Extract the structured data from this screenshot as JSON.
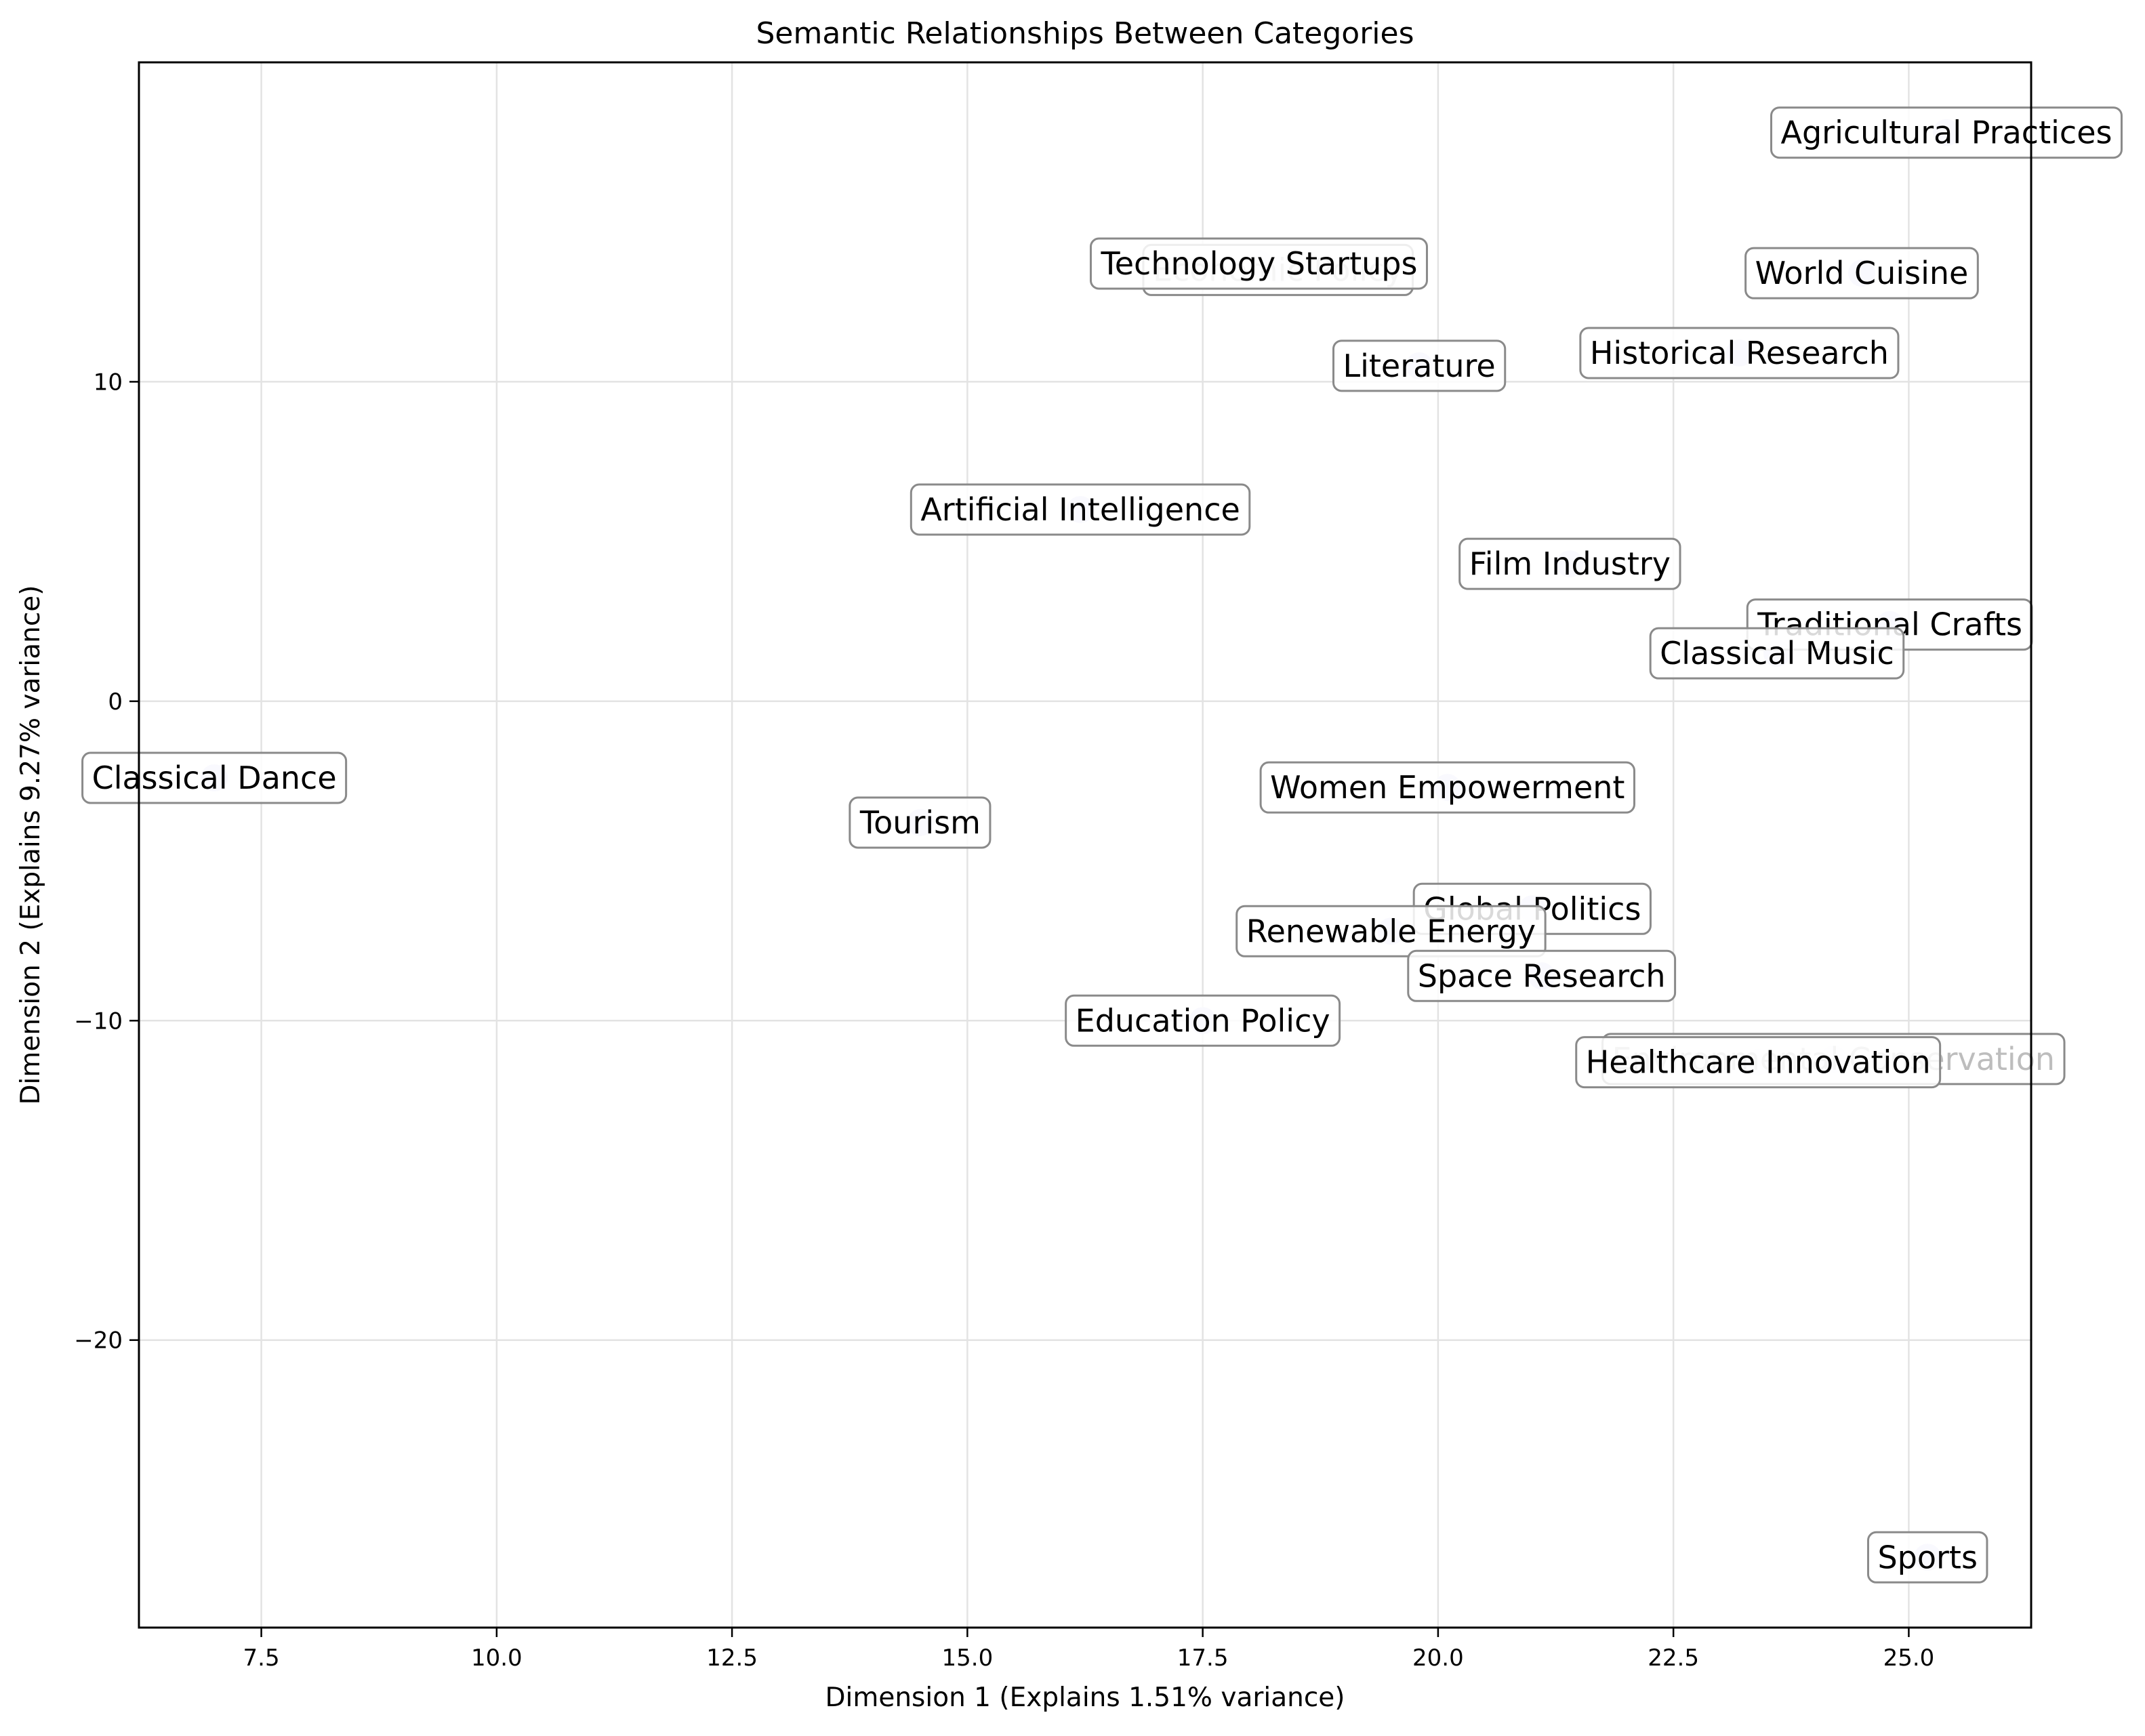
{
  "chart_data": {
    "type": "scatter",
    "title": "Semantic Relationships Between Categories",
    "xlabel": "Dimension 1 (Explains 1.51% variance)",
    "ylabel": "Dimension 2 (Explains 9.27% variance)",
    "xlim": [
      6.2,
      26.3
    ],
    "ylim": [
      -29.0,
      20.0
    ],
    "xticks": [
      7.5,
      10.0,
      12.5,
      15.0,
      17.5,
      20.0,
      22.5,
      25.0
    ],
    "xtick_labels": [
      "7.5",
      "10.0",
      "12.5",
      "15.0",
      "17.5",
      "20.0",
      "22.5",
      "25.0"
    ],
    "yticks": [
      10,
      0,
      -10,
      -20
    ],
    "ytick_labels": [
      "10",
      "0",
      "−10",
      "−20"
    ],
    "grid": true,
    "point_color": "#d8d8f6",
    "points": [
      {
        "label": "Agricultural Practices",
        "x": 25.4,
        "y": 17.8
      },
      {
        "label": "World Cuisine",
        "x": 24.5,
        "y": 13.4
      },
      {
        "label": "Historical Research",
        "x": 23.2,
        "y": 10.9
      },
      {
        "label": "Economic Policy",
        "x": 18.3,
        "y": 13.5
      },
      {
        "label": "Technology Startups",
        "x": 18.1,
        "y": 13.7
      },
      {
        "label": "Literature",
        "x": 19.8,
        "y": 10.5
      },
      {
        "label": "Artificial Intelligence",
        "x": 16.2,
        "y": 6.0
      },
      {
        "label": "Film Industry",
        "x": 21.4,
        "y": 4.3
      },
      {
        "label": "Traditional Crafts",
        "x": 24.8,
        "y": 2.4
      },
      {
        "label": "Classical Music",
        "x": 23.6,
        "y": 1.5
      },
      {
        "label": "Classical Dance",
        "x": 7.0,
        "y": -2.4
      },
      {
        "label": "Tourism",
        "x": 14.5,
        "y": -3.8
      },
      {
        "label": "Women Empowerment",
        "x": 20.1,
        "y": -2.7
      },
      {
        "label": "Global Politics",
        "x": 21.0,
        "y": -6.5
      },
      {
        "label": "Renewable Energy",
        "x": 19.5,
        "y": -7.2
      },
      {
        "label": "Space Research",
        "x": 21.1,
        "y": -8.6
      },
      {
        "label": "Education Policy",
        "x": 17.5,
        "y": -10.0
      },
      {
        "label": "Environmental Conservation",
        "x": 24.2,
        "y": -11.2
      },
      {
        "label": "Healthcare Innovation",
        "x": 23.4,
        "y": -11.3
      },
      {
        "label": "Sports",
        "x": 25.2,
        "y": -26.8
      }
    ]
  }
}
